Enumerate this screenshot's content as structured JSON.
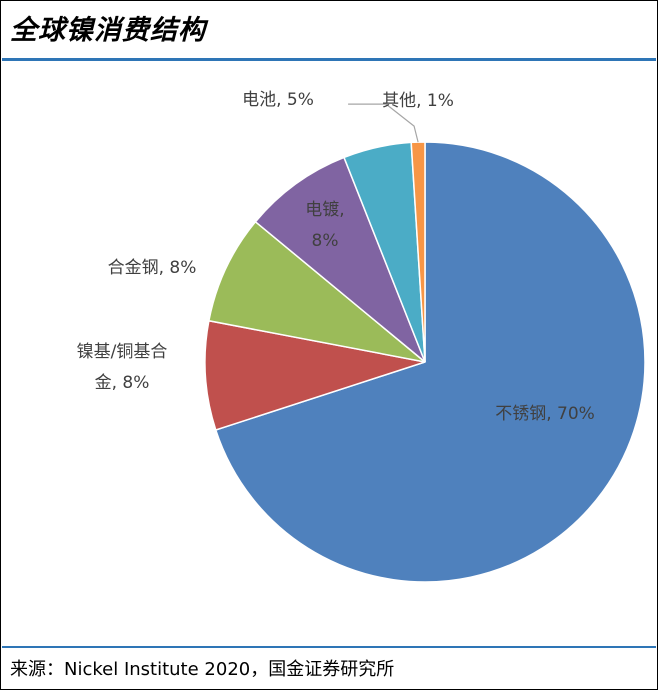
{
  "title": "全球镍消费结构",
  "source": "来源：Nickel Institute 2020，国金证券研究所",
  "chart_data": {
    "type": "pie",
    "title": "全球镍消费结构",
    "slices": [
      {
        "name": "不锈钢",
        "value": 70,
        "label_lines": [
          "不锈钢, 70%"
        ],
        "color": "#4f81bd"
      },
      {
        "name": "镍基/铜基合金",
        "value": 8,
        "label_lines": [
          "镍基/铜基合",
          "金, 8%"
        ],
        "color": "#c0504d"
      },
      {
        "name": "合金钢",
        "value": 8,
        "label_lines": [
          "合金钢, 8%"
        ],
        "color": "#9bbb59"
      },
      {
        "name": "电镀",
        "value": 8,
        "label_lines": [
          "电镀,",
          "8%"
        ],
        "color": "#8064a2"
      },
      {
        "name": "电池",
        "value": 5,
        "label_lines": [
          "电池, 5%"
        ],
        "color": "#4bacc6"
      },
      {
        "name": "其他",
        "value": 1,
        "label_lines": [
          "其他, 1%"
        ],
        "color": "#f79646"
      }
    ],
    "start_angle_deg": 0,
    "direction": "clockwise"
  }
}
